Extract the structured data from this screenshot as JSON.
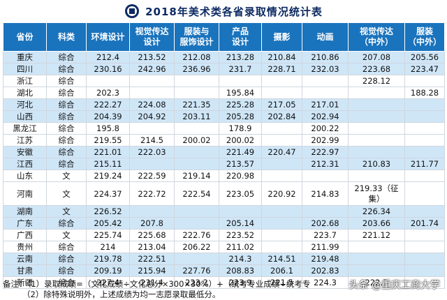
{
  "title": "2018年美术类各省录取情况统计表",
  "headers": [
    "省份",
    "科类",
    "环境设计",
    "视觉传达\n设计",
    "服装与\n服饰设计",
    "产品\n设计",
    "摄影",
    "动画",
    "视觉传达\n（中外）",
    "服装\n（中外）"
  ],
  "rows": [
    {
      "cells": [
        "重庆",
        "综合",
        "212.4",
        "213.52",
        "212.08",
        "213.28",
        "210.84",
        "210.86",
        "207.08",
        "205.56"
      ],
      "shade": "blue",
      "tall": false
    },
    {
      "cells": [
        "四川",
        "综合",
        "230.16",
        "242.96",
        "236.96",
        "231.7",
        "228.71",
        "232.03",
        "223.68",
        "223.47"
      ],
      "shade": "blue",
      "tall": false
    },
    {
      "cells": [
        "浙江",
        "综合",
        "",
        "",
        "",
        "",
        "",
        "",
        "228.12",
        ""
      ],
      "shade": "white",
      "tall": false
    },
    {
      "cells": [
        "湖北",
        "综合",
        "202.3",
        "",
        "",
        "195.84",
        "",
        "",
        "",
        "188.28"
      ],
      "shade": "white",
      "tall": false
    },
    {
      "cells": [
        "河北",
        "综合",
        "222.27",
        "224.08",
        "221.35",
        "225.28",
        "217.05",
        "217.01",
        "",
        ""
      ],
      "shade": "blue",
      "tall": false
    },
    {
      "cells": [
        "山西",
        "综合",
        "204.39",
        "204.92",
        "203.11",
        "205.28",
        "202.84",
        "202.94",
        "",
        ""
      ],
      "shade": "blue",
      "tall": false
    },
    {
      "cells": [
        "黑龙江",
        "综合",
        "195.8",
        "",
        "",
        "178.9",
        "",
        "200.22",
        "",
        ""
      ],
      "shade": "white",
      "tall": false
    },
    {
      "cells": [
        "江苏",
        "综合",
        "219.55",
        "214.5",
        "200.02",
        "200.02",
        "",
        "202.99",
        "",
        ""
      ],
      "shade": "white",
      "tall": false
    },
    {
      "cells": [
        "安徽",
        "综合",
        "221.01",
        "222.03",
        "",
        "221.49",
        "220.47",
        "222.97",
        "",
        ""
      ],
      "shade": "blue",
      "tall": false
    },
    {
      "cells": [
        "江西",
        "综合",
        "215.11",
        "",
        "",
        "213.57",
        "",
        "212.31",
        "210.83",
        "211.77"
      ],
      "shade": "blue",
      "tall": false
    },
    {
      "cells": [
        "山东",
        "文",
        "219.24",
        "222.59",
        "219.14",
        "220.98",
        "",
        "",
        "",
        ""
      ],
      "shade": "white",
      "tall": false
    },
    {
      "cells": [
        "河南",
        "文",
        "224.37",
        "222.72",
        "222.54",
        "223.05",
        "220.92",
        "214.83",
        "219.33（征集）",
        ""
      ],
      "shade": "white",
      "tall": true
    },
    {
      "cells": [
        "湖南",
        "文",
        "226.52",
        "",
        "",
        "",
        "",
        "",
        "226.34",
        ""
      ],
      "shade": "blue",
      "tall": false
    },
    {
      "cells": [
        "广东",
        "综合",
        "205.42",
        "207.8",
        "",
        "205.14",
        "",
        "202.68",
        "203.66",
        "201.74"
      ],
      "shade": "blue",
      "tall": false
    },
    {
      "cells": [
        "广西",
        "文",
        "225.74",
        "225.68",
        "222.76",
        "223.52",
        "",
        "223.7",
        "221.12",
        ""
      ],
      "shade": "white",
      "tall": false
    },
    {
      "cells": [
        "贵州",
        "综合",
        "214",
        "213.04",
        "206.22",
        "211.02",
        "",
        "211.99",
        "",
        ""
      ],
      "shade": "white",
      "tall": false
    },
    {
      "cells": [
        "云南",
        "综合",
        "219.78",
        "222.51",
        "",
        "214.3",
        "214.51",
        "219.48",
        "",
        ""
      ],
      "shade": "blue",
      "tall": false
    },
    {
      "cells": [
        "甘肃",
        "综合",
        "209.19",
        "215.94",
        "227.76",
        "208.83",
        "206.1",
        "202.83",
        "",
        ""
      ],
      "shade": "blue",
      "tall": false
    },
    {
      "cells": [
        "新疆",
        "综合",
        "227.4",
        "231.4",
        "223.2",
        "223.9",
        "221.5",
        "224.3",
        "222.3",
        ""
      ],
      "shade": "white",
      "tall": false
    }
  ],
  "notes": [
    "备注：（1）录取成绩=（文化成绩÷文化总分×300×30%）+（统考专业成绩÷统考专",
    "（2）除特殊说明外，上述成绩为均一志愿录取最低分。"
  ],
  "watermark": "头条 @重庆工商大学",
  "colors": {
    "header_bg": "#1a73bd",
    "row_blue": "#cfe6f7",
    "title": "#0d2a63"
  },
  "icons": {
    "logo": "university-crest-icon",
    "watermark": "headset-icon"
  }
}
